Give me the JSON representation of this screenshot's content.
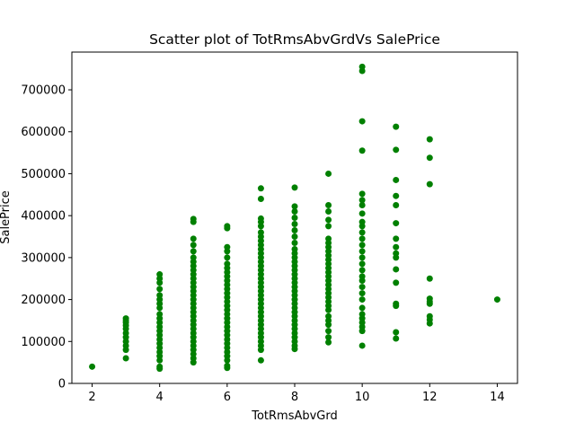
{
  "chart_data": {
    "type": "scatter",
    "title": "Scatter plot of TotRmsAbvGrdVs SalePrice",
    "xlabel": "TotRmsAbvGrd",
    "ylabel": "SalePrice",
    "xlim": [
      1.4,
      14.6
    ],
    "ylim": [
      0,
      790000
    ],
    "xticks": [
      2,
      4,
      6,
      8,
      10,
      12,
      14
    ],
    "yticks": [
      0,
      100000,
      200000,
      300000,
      400000,
      500000,
      600000,
      700000
    ],
    "grid": false,
    "marker_color": "#008000",
    "series": [
      {
        "points": [
          {
            "x": 2,
            "y": 40000
          },
          {
            "x": 3,
            "y": 60000
          },
          {
            "x": 3,
            "y": 80000
          },
          {
            "x": 3,
            "y": 90000
          },
          {
            "x": 3,
            "y": 100000
          },
          {
            "x": 3,
            "y": 110000
          },
          {
            "x": 3,
            "y": 120000
          },
          {
            "x": 3,
            "y": 130000
          },
          {
            "x": 3,
            "y": 138000
          },
          {
            "x": 3,
            "y": 145000
          },
          {
            "x": 3,
            "y": 150000
          },
          {
            "x": 3,
            "y": 155000
          },
          {
            "x": 4,
            "y": 35000
          },
          {
            "x": 4,
            "y": 40000
          },
          {
            "x": 4,
            "y": 55000
          },
          {
            "x": 4,
            "y": 65000
          },
          {
            "x": 4,
            "y": 75000
          },
          {
            "x": 4,
            "y": 85000
          },
          {
            "x": 4,
            "y": 95000
          },
          {
            "x": 4,
            "y": 105000
          },
          {
            "x": 4,
            "y": 115000
          },
          {
            "x": 4,
            "y": 125000
          },
          {
            "x": 4,
            "y": 135000
          },
          {
            "x": 4,
            "y": 145000
          },
          {
            "x": 4,
            "y": 155000
          },
          {
            "x": 4,
            "y": 165000
          },
          {
            "x": 4,
            "y": 180000
          },
          {
            "x": 4,
            "y": 190000
          },
          {
            "x": 4,
            "y": 200000
          },
          {
            "x": 4,
            "y": 210000
          },
          {
            "x": 4,
            "y": 225000
          },
          {
            "x": 4,
            "y": 240000
          },
          {
            "x": 4,
            "y": 250000
          },
          {
            "x": 4,
            "y": 260000
          },
          {
            "x": 5,
            "y": 50000
          },
          {
            "x": 5,
            "y": 60000
          },
          {
            "x": 5,
            "y": 70000
          },
          {
            "x": 5,
            "y": 80000
          },
          {
            "x": 5,
            "y": 90000
          },
          {
            "x": 5,
            "y": 100000
          },
          {
            "x": 5,
            "y": 110000
          },
          {
            "x": 5,
            "y": 120000
          },
          {
            "x": 5,
            "y": 130000
          },
          {
            "x": 5,
            "y": 140000
          },
          {
            "x": 5,
            "y": 150000
          },
          {
            "x": 5,
            "y": 160000
          },
          {
            "x": 5,
            "y": 170000
          },
          {
            "x": 5,
            "y": 180000
          },
          {
            "x": 5,
            "y": 190000
          },
          {
            "x": 5,
            "y": 200000
          },
          {
            "x": 5,
            "y": 210000
          },
          {
            "x": 5,
            "y": 220000
          },
          {
            "x": 5,
            "y": 230000
          },
          {
            "x": 5,
            "y": 240000
          },
          {
            "x": 5,
            "y": 250000
          },
          {
            "x": 5,
            "y": 260000
          },
          {
            "x": 5,
            "y": 270000
          },
          {
            "x": 5,
            "y": 280000
          },
          {
            "x": 5,
            "y": 290000
          },
          {
            "x": 5,
            "y": 300000
          },
          {
            "x": 5,
            "y": 315000
          },
          {
            "x": 5,
            "y": 330000
          },
          {
            "x": 5,
            "y": 345000
          },
          {
            "x": 5,
            "y": 385000
          },
          {
            "x": 5,
            "y": 392000
          },
          {
            "x": 6,
            "y": 37000
          },
          {
            "x": 6,
            "y": 42000
          },
          {
            "x": 6,
            "y": 55000
          },
          {
            "x": 6,
            "y": 65000
          },
          {
            "x": 6,
            "y": 75000
          },
          {
            "x": 6,
            "y": 85000
          },
          {
            "x": 6,
            "y": 95000
          },
          {
            "x": 6,
            "y": 105000
          },
          {
            "x": 6,
            "y": 115000
          },
          {
            "x": 6,
            "y": 125000
          },
          {
            "x": 6,
            "y": 135000
          },
          {
            "x": 6,
            "y": 145000
          },
          {
            "x": 6,
            "y": 155000
          },
          {
            "x": 6,
            "y": 165000
          },
          {
            "x": 6,
            "y": 175000
          },
          {
            "x": 6,
            "y": 185000
          },
          {
            "x": 6,
            "y": 195000
          },
          {
            "x": 6,
            "y": 205000
          },
          {
            "x": 6,
            "y": 215000
          },
          {
            "x": 6,
            "y": 225000
          },
          {
            "x": 6,
            "y": 235000
          },
          {
            "x": 6,
            "y": 245000
          },
          {
            "x": 6,
            "y": 255000
          },
          {
            "x": 6,
            "y": 265000
          },
          {
            "x": 6,
            "y": 275000
          },
          {
            "x": 6,
            "y": 285000
          },
          {
            "x": 6,
            "y": 300000
          },
          {
            "x": 6,
            "y": 315000
          },
          {
            "x": 6,
            "y": 325000
          },
          {
            "x": 6,
            "y": 370000
          },
          {
            "x": 6,
            "y": 375000
          },
          {
            "x": 7,
            "y": 55000
          },
          {
            "x": 7,
            "y": 80000
          },
          {
            "x": 7,
            "y": 90000
          },
          {
            "x": 7,
            "y": 100000
          },
          {
            "x": 7,
            "y": 110000
          },
          {
            "x": 7,
            "y": 120000
          },
          {
            "x": 7,
            "y": 130000
          },
          {
            "x": 7,
            "y": 140000
          },
          {
            "x": 7,
            "y": 150000
          },
          {
            "x": 7,
            "y": 160000
          },
          {
            "x": 7,
            "y": 170000
          },
          {
            "x": 7,
            "y": 180000
          },
          {
            "x": 7,
            "y": 190000
          },
          {
            "x": 7,
            "y": 200000
          },
          {
            "x": 7,
            "y": 210000
          },
          {
            "x": 7,
            "y": 220000
          },
          {
            "x": 7,
            "y": 230000
          },
          {
            "x": 7,
            "y": 240000
          },
          {
            "x": 7,
            "y": 250000
          },
          {
            "x": 7,
            "y": 260000
          },
          {
            "x": 7,
            "y": 270000
          },
          {
            "x": 7,
            "y": 280000
          },
          {
            "x": 7,
            "y": 290000
          },
          {
            "x": 7,
            "y": 300000
          },
          {
            "x": 7,
            "y": 310000
          },
          {
            "x": 7,
            "y": 320000
          },
          {
            "x": 7,
            "y": 330000
          },
          {
            "x": 7,
            "y": 340000
          },
          {
            "x": 7,
            "y": 350000
          },
          {
            "x": 7,
            "y": 360000
          },
          {
            "x": 7,
            "y": 375000
          },
          {
            "x": 7,
            "y": 385000
          },
          {
            "x": 7,
            "y": 393000
          },
          {
            "x": 7,
            "y": 440000
          },
          {
            "x": 7,
            "y": 465000
          },
          {
            "x": 8,
            "y": 82000
          },
          {
            "x": 8,
            "y": 90000
          },
          {
            "x": 8,
            "y": 100000
          },
          {
            "x": 8,
            "y": 110000
          },
          {
            "x": 8,
            "y": 120000
          },
          {
            "x": 8,
            "y": 130000
          },
          {
            "x": 8,
            "y": 140000
          },
          {
            "x": 8,
            "y": 150000
          },
          {
            "x": 8,
            "y": 160000
          },
          {
            "x": 8,
            "y": 170000
          },
          {
            "x": 8,
            "y": 180000
          },
          {
            "x": 8,
            "y": 190000
          },
          {
            "x": 8,
            "y": 200000
          },
          {
            "x": 8,
            "y": 210000
          },
          {
            "x": 8,
            "y": 220000
          },
          {
            "x": 8,
            "y": 230000
          },
          {
            "x": 8,
            "y": 240000
          },
          {
            "x": 8,
            "y": 250000
          },
          {
            "x": 8,
            "y": 260000
          },
          {
            "x": 8,
            "y": 270000
          },
          {
            "x": 8,
            "y": 280000
          },
          {
            "x": 8,
            "y": 290000
          },
          {
            "x": 8,
            "y": 300000
          },
          {
            "x": 8,
            "y": 310000
          },
          {
            "x": 8,
            "y": 320000
          },
          {
            "x": 8,
            "y": 335000
          },
          {
            "x": 8,
            "y": 350000
          },
          {
            "x": 8,
            "y": 365000
          },
          {
            "x": 8,
            "y": 380000
          },
          {
            "x": 8,
            "y": 395000
          },
          {
            "x": 8,
            "y": 410000
          },
          {
            "x": 8,
            "y": 422000
          },
          {
            "x": 8,
            "y": 467000
          },
          {
            "x": 9,
            "y": 98000
          },
          {
            "x": 9,
            "y": 110000
          },
          {
            "x": 9,
            "y": 125000
          },
          {
            "x": 9,
            "y": 140000
          },
          {
            "x": 9,
            "y": 150000
          },
          {
            "x": 9,
            "y": 160000
          },
          {
            "x": 9,
            "y": 175000
          },
          {
            "x": 9,
            "y": 185000
          },
          {
            "x": 9,
            "y": 195000
          },
          {
            "x": 9,
            "y": 205000
          },
          {
            "x": 9,
            "y": 215000
          },
          {
            "x": 9,
            "y": 225000
          },
          {
            "x": 9,
            "y": 235000
          },
          {
            "x": 9,
            "y": 245000
          },
          {
            "x": 9,
            "y": 255000
          },
          {
            "x": 9,
            "y": 265000
          },
          {
            "x": 9,
            "y": 275000
          },
          {
            "x": 9,
            "y": 285000
          },
          {
            "x": 9,
            "y": 295000
          },
          {
            "x": 9,
            "y": 305000
          },
          {
            "x": 9,
            "y": 315000
          },
          {
            "x": 9,
            "y": 325000
          },
          {
            "x": 9,
            "y": 335000
          },
          {
            "x": 9,
            "y": 345000
          },
          {
            "x": 9,
            "y": 375000
          },
          {
            "x": 9,
            "y": 390000
          },
          {
            "x": 9,
            "y": 410000
          },
          {
            "x": 9,
            "y": 425000
          },
          {
            "x": 9,
            "y": 500000
          },
          {
            "x": 10,
            "y": 90000
          },
          {
            "x": 10,
            "y": 125000
          },
          {
            "x": 10,
            "y": 135000
          },
          {
            "x": 10,
            "y": 145000
          },
          {
            "x": 10,
            "y": 155000
          },
          {
            "x": 10,
            "y": 165000
          },
          {
            "x": 10,
            "y": 180000
          },
          {
            "x": 10,
            "y": 200000
          },
          {
            "x": 10,
            "y": 215000
          },
          {
            "x": 10,
            "y": 230000
          },
          {
            "x": 10,
            "y": 245000
          },
          {
            "x": 10,
            "y": 255000
          },
          {
            "x": 10,
            "y": 270000
          },
          {
            "x": 10,
            "y": 285000
          },
          {
            "x": 10,
            "y": 300000
          },
          {
            "x": 10,
            "y": 315000
          },
          {
            "x": 10,
            "y": 330000
          },
          {
            "x": 10,
            "y": 345000
          },
          {
            "x": 10,
            "y": 360000
          },
          {
            "x": 10,
            "y": 375000
          },
          {
            "x": 10,
            "y": 385000
          },
          {
            "x": 10,
            "y": 405000
          },
          {
            "x": 10,
            "y": 425000
          },
          {
            "x": 10,
            "y": 437000
          },
          {
            "x": 10,
            "y": 452000
          },
          {
            "x": 10,
            "y": 555000
          },
          {
            "x": 10,
            "y": 625000
          },
          {
            "x": 10,
            "y": 745000
          },
          {
            "x": 10,
            "y": 755000
          },
          {
            "x": 11,
            "y": 107000
          },
          {
            "x": 11,
            "y": 122000
          },
          {
            "x": 11,
            "y": 185000
          },
          {
            "x": 11,
            "y": 190000
          },
          {
            "x": 11,
            "y": 240000
          },
          {
            "x": 11,
            "y": 272000
          },
          {
            "x": 11,
            "y": 300000
          },
          {
            "x": 11,
            "y": 310000
          },
          {
            "x": 11,
            "y": 325000
          },
          {
            "x": 11,
            "y": 345000
          },
          {
            "x": 11,
            "y": 382000
          },
          {
            "x": 11,
            "y": 425000
          },
          {
            "x": 11,
            "y": 447000
          },
          {
            "x": 11,
            "y": 485000
          },
          {
            "x": 11,
            "y": 557000
          },
          {
            "x": 11,
            "y": 612000
          },
          {
            "x": 12,
            "y": 143000
          },
          {
            "x": 12,
            "y": 152000
          },
          {
            "x": 12,
            "y": 160000
          },
          {
            "x": 12,
            "y": 190000
          },
          {
            "x": 12,
            "y": 195000
          },
          {
            "x": 12,
            "y": 202000
          },
          {
            "x": 12,
            "y": 250000
          },
          {
            "x": 12,
            "y": 475000
          },
          {
            "x": 12,
            "y": 538000
          },
          {
            "x": 12,
            "y": 582000
          },
          {
            "x": 14,
            "y": 200000
          }
        ]
      }
    ]
  }
}
